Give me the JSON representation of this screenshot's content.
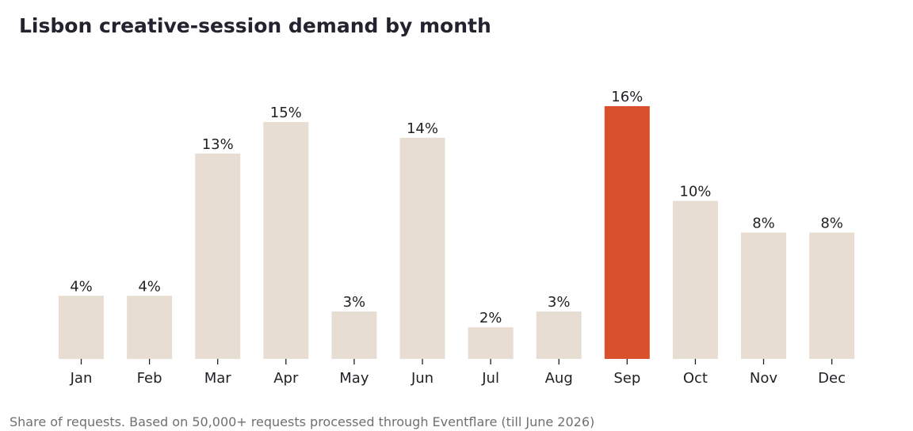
{
  "chart_data": {
    "type": "bar",
    "title": "Lisbon creative-session demand by month",
    "xlabel": "",
    "ylabel": "",
    "categories": [
      "Jan",
      "Feb",
      "Mar",
      "Apr",
      "May",
      "Jun",
      "Jul",
      "Aug",
      "Sep",
      "Oct",
      "Nov",
      "Dec"
    ],
    "values": [
      4,
      4,
      13,
      15,
      3,
      14,
      2,
      3,
      16,
      10,
      8,
      8
    ],
    "value_labels": [
      "4%",
      "4%",
      "13%",
      "15%",
      "3%",
      "14%",
      "2%",
      "3%",
      "16%",
      "10%",
      "8%",
      "8%"
    ],
    "unit": "%",
    "ylim": [
      0,
      16
    ],
    "highlight_category": "Sep",
    "grid": false,
    "legend": "none",
    "colors": {
      "bar": "#e8ddd3",
      "highlight": "#d9512c",
      "text": "#1f2024",
      "title": "#22232f",
      "footnote": "#707070"
    }
  },
  "footnote": "Share of requests. Based on 50,000+ requests processed through Eventflare (till June 2026)"
}
